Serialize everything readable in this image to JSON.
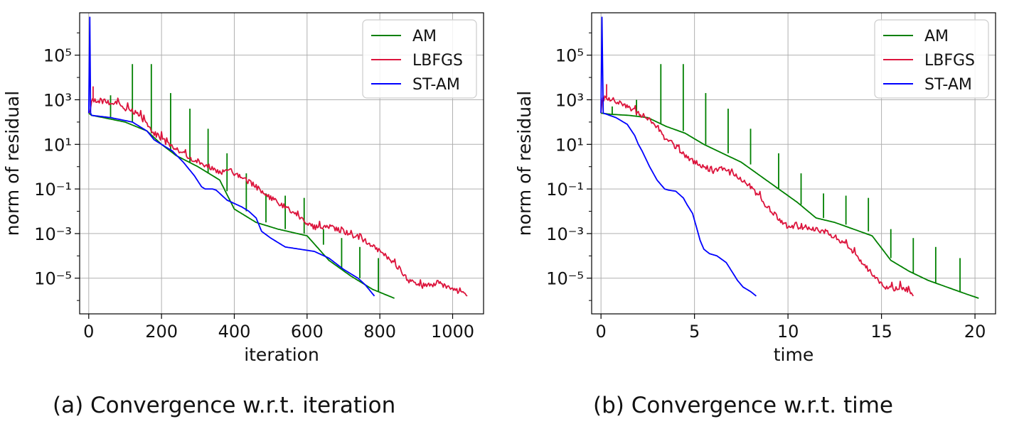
{
  "chart_data": [
    {
      "type": "line",
      "caption": "(a) Convergence w.r.t. iteration",
      "xlabel": "iteration",
      "ylabel": "norm of residual",
      "yscale": "log",
      "xlim": [
        -25,
        1085
      ],
      "ylim_exp": [
        -6.6,
        6.9
      ],
      "xticks": [
        0,
        200,
        400,
        600,
        800,
        1000
      ],
      "yticks_exp": [
        -5,
        -3,
        -1,
        1,
        3,
        5
      ],
      "ytick_labels": [
        "10⁻⁵",
        "10⁻³",
        "10⁻¹",
        "10¹",
        "10³",
        "10⁵"
      ],
      "grid": true,
      "legend_position": "top-right",
      "series": [
        {
          "name": "AM",
          "color": "#008000",
          "noise": 0,
          "x": [
            0,
            4,
            8,
            40,
            100,
            160,
            200,
            240,
            300,
            360,
            400,
            460,
            520,
            600,
            660,
            720,
            780,
            840
          ],
          "log10_y": [
            2.4,
            2.35,
            2.3,
            2.2,
            2.0,
            1.6,
            1.0,
            0.5,
            0.0,
            -0.6,
            -1.9,
            -2.5,
            -2.8,
            -3.1,
            -4.2,
            -4.9,
            -5.5,
            -5.9
          ],
          "spikes": [
            [
              60,
              2.2,
              3.2
            ],
            [
              120,
              2.0,
              4.6
            ],
            [
              172,
              1.5,
              4.6
            ],
            [
              225,
              0.7,
              3.3
            ],
            [
              278,
              0.2,
              2.6
            ],
            [
              328,
              -0.3,
              1.7
            ],
            [
              380,
              -1.1,
              0.6
            ],
            [
              433,
              -2.0,
              -0.3
            ],
            [
              487,
              -2.5,
              -1.2
            ],
            [
              540,
              -2.8,
              -1.3
            ],
            [
              592,
              -3.0,
              -1.4
            ],
            [
              645,
              -3.5,
              -2.8
            ],
            [
              695,
              -4.6,
              -3.2
            ],
            [
              745,
              -5.0,
              -3.6
            ],
            [
              796,
              -5.6,
              -4.1
            ]
          ]
        },
        {
          "name": "LBFGS",
          "color": "#dc143c",
          "noise": 0.12,
          "x": [
            0,
            4,
            8,
            20,
            80,
            140,
            180,
            220,
            260,
            300,
            330,
            360,
            380,
            420,
            460,
            500,
            560,
            600,
            640,
            660,
            700,
            760,
            800,
            850,
            880,
            920,
            960,
            1000,
            1040
          ],
          "log10_y": [
            2.4,
            2.6,
            3.0,
            3.0,
            2.8,
            2.3,
            1.5,
            1.0,
            0.6,
            0.2,
            0.0,
            -0.3,
            -0.1,
            -0.5,
            -0.9,
            -1.4,
            -2.0,
            -2.6,
            -2.8,
            -2.7,
            -2.9,
            -3.3,
            -3.8,
            -4.5,
            -5.1,
            -5.4,
            -5.2,
            -5.5,
            -5.8
          ],
          "spikes": [
            [
              12,
              3.0,
              3.6
            ]
          ]
        },
        {
          "name": "ST-AM",
          "color": "#0000ff",
          "noise": 0,
          "x": [
            0,
            3,
            5,
            8,
            60,
            120,
            160,
            180,
            200,
            230,
            260,
            290,
            310,
            320,
            340,
            350,
            380,
            420,
            440,
            460,
            475,
            500,
            540,
            580,
            620,
            660,
            700,
            740,
            760,
            785
          ],
          "log10_y": [
            2.4,
            6.7,
            2.4,
            2.3,
            2.2,
            2.0,
            1.6,
            1.2,
            1.0,
            0.7,
            0.2,
            -0.4,
            -0.9,
            -1.0,
            -1.0,
            -1.05,
            -1.5,
            -1.8,
            -2.0,
            -2.3,
            -2.9,
            -3.2,
            -3.6,
            -3.7,
            -3.8,
            -4.1,
            -4.6,
            -5.0,
            -5.3,
            -5.8
          ],
          "spikes": []
        }
      ]
    },
    {
      "type": "line",
      "caption": "(b) Convergence w.r.t. time",
      "xlabel": "time",
      "ylabel": "norm of residual",
      "yscale": "log",
      "xlim": [
        -0.5,
        21.1
      ],
      "ylim_exp": [
        -6.6,
        6.9
      ],
      "xticks": [
        0,
        5,
        10,
        15,
        20
      ],
      "yticks_exp": [
        -5,
        -3,
        -1,
        1,
        3,
        5
      ],
      "ytick_labels": [
        "10⁻⁵",
        "10⁻³",
        "10⁻¹",
        "10¹",
        "10³",
        "10⁵"
      ],
      "grid": true,
      "legend_position": "top-right",
      "series": [
        {
          "name": "AM",
          "color": "#008000",
          "noise": 0,
          "x": [
            0,
            0.5,
            1.5,
            2.5,
            3.5,
            4.5,
            5.5,
            6.5,
            7.5,
            8.5,
            9.5,
            10.5,
            11.5,
            12.5,
            13.5,
            14.5,
            15.5,
            16.5,
            17.5,
            18.5,
            19.5,
            20.2
          ],
          "log10_y": [
            2.4,
            2.35,
            2.3,
            2.2,
            1.8,
            1.5,
            1.0,
            0.6,
            0.2,
            -0.4,
            -1.0,
            -1.6,
            -2.3,
            -2.5,
            -2.8,
            -3.1,
            -4.2,
            -4.7,
            -5.1,
            -5.4,
            -5.7,
            -5.9
          ],
          "spikes": [
            [
              0.6,
              2.35,
              2.7
            ],
            [
              1.9,
              2.3,
              3.0
            ],
            [
              3.2,
              1.9,
              4.6
            ],
            [
              4.4,
              1.6,
              4.6
            ],
            [
              5.6,
              1.0,
              3.3
            ],
            [
              6.8,
              0.6,
              2.6
            ],
            [
              8.0,
              0.1,
              1.7
            ],
            [
              9.5,
              -1.0,
              0.6
            ],
            [
              10.7,
              -1.7,
              -0.3
            ],
            [
              11.9,
              -2.3,
              -1.2
            ],
            [
              13.1,
              -2.6,
              -1.3
            ],
            [
              14.3,
              -2.9,
              -1.4
            ],
            [
              15.5,
              -4.1,
              -2.8
            ],
            [
              16.7,
              -4.8,
              -3.2
            ],
            [
              17.9,
              -5.2,
              -3.6
            ],
            [
              19.2,
              -5.6,
              -4.1
            ]
          ]
        },
        {
          "name": "LBFGS",
          "color": "#dc143c",
          "noise": 0.12,
          "x": [
            0,
            0.05,
            0.2,
            1.0,
            2.0,
            2.6,
            3.0,
            3.5,
            4.0,
            4.5,
            5.0,
            5.5,
            5.8,
            6.0,
            6.5,
            7.0,
            7.5,
            8.0,
            8.5,
            9.0,
            9.5,
            10.0,
            11.0,
            12.0,
            13.0,
            13.5,
            14.0,
            14.5,
            15.0,
            15.5,
            16.0,
            16.5,
            16.7
          ],
          "log10_y": [
            2.4,
            3.0,
            3.1,
            2.9,
            2.4,
            2.1,
            1.8,
            1.2,
            0.9,
            0.5,
            0.2,
            0.0,
            -0.1,
            -0.2,
            -0.1,
            -0.3,
            -0.6,
            -0.9,
            -1.4,
            -1.9,
            -2.3,
            -2.7,
            -2.8,
            -2.9,
            -3.4,
            -3.8,
            -4.3,
            -4.8,
            -5.3,
            -5.5,
            -5.4,
            -5.6,
            -5.8
          ],
          "spikes": [
            [
              0.3,
              3.1,
              3.7
            ]
          ]
        },
        {
          "name": "ST-AM",
          "color": "#0000ff",
          "noise": 0,
          "x": [
            0,
            0.05,
            0.12,
            0.3,
            0.8,
            1.4,
            1.8,
            2.0,
            2.2,
            2.6,
            3.0,
            3.4,
            3.6,
            4.0,
            4.4,
            4.6,
            4.9,
            5.1,
            5.3,
            5.5,
            5.8,
            6.2,
            6.7,
            7.0,
            7.3,
            7.6,
            8.0,
            8.3
          ],
          "log10_y": [
            2.4,
            6.7,
            2.4,
            2.35,
            2.2,
            1.9,
            1.4,
            1.0,
            0.7,
            0.0,
            -0.6,
            -1.0,
            -1.05,
            -1.1,
            -1.4,
            -1.7,
            -2.1,
            -2.7,
            -3.3,
            -3.7,
            -3.9,
            -4.0,
            -4.3,
            -4.7,
            -5.1,
            -5.4,
            -5.6,
            -5.8
          ],
          "spikes": []
        }
      ]
    }
  ]
}
